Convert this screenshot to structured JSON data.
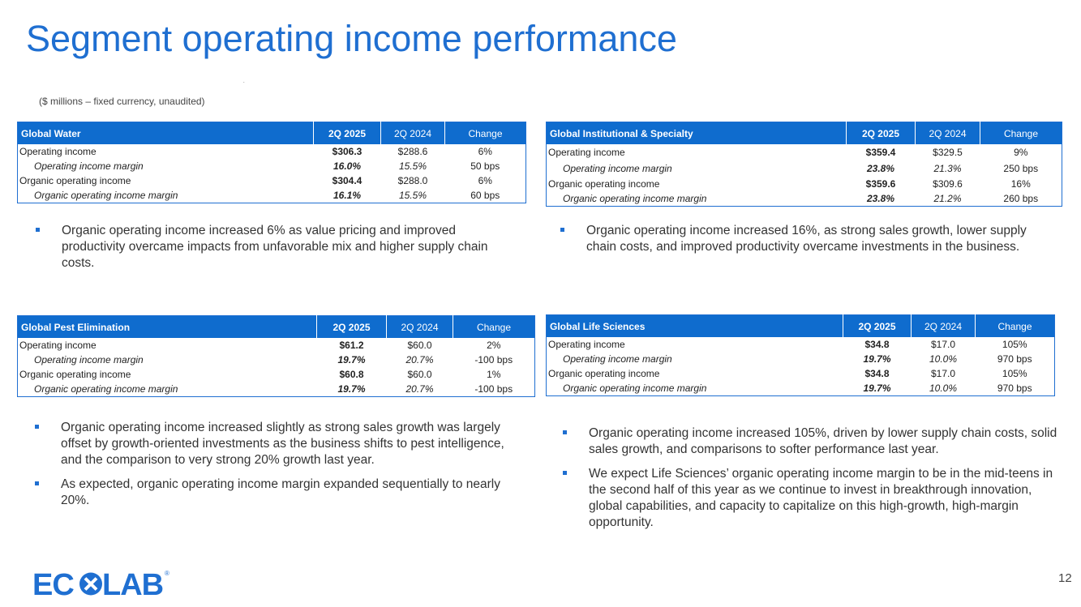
{
  "title": "Segment operating income performance",
  "subtitle": "($ millions – fixed currency, unaudited)",
  "page_number": "12",
  "colors": {
    "accent": "#1f6fd1",
    "header_bg": "#0f6cce"
  },
  "logo": {
    "text": "ECOLAB",
    "mark": "®"
  },
  "tables": {
    "water": {
      "name": "Global Water",
      "col_current": "2Q 2025",
      "col_prior": "2Q 2024",
      "col_change": "Change",
      "rows": [
        {
          "label": "Operating income",
          "current": "$306.3",
          "prior": "$288.6",
          "change": "6%"
        },
        {
          "label": "Operating income margin",
          "current": "16.0%",
          "prior": "15.5%",
          "change": "50 bps"
        },
        {
          "label": "Organic operating income",
          "current": "$304.4",
          "prior": "$288.0",
          "change": "6%"
        },
        {
          "label": "Organic operating income margin",
          "current": "16.1%",
          "prior": "15.5%",
          "change": "60 bps"
        }
      ]
    },
    "institutional": {
      "name": "Global Institutional & Specialty",
      "col_current": "2Q 2025",
      "col_prior": "2Q 2024",
      "col_change": "Change",
      "rows": [
        {
          "label": "Operating income",
          "current": "$359.4",
          "prior": "$329.5",
          "change": "9%"
        },
        {
          "label": "Operating income margin",
          "current": "23.8%",
          "prior": "21.3%",
          "change": "250 bps"
        },
        {
          "label": "Organic operating income",
          "current": "$359.6",
          "prior": "$309.6",
          "change": "16%"
        },
        {
          "label": "Organic operating income margin",
          "current": "23.8%",
          "prior": "21.2%",
          "change": "260 bps"
        }
      ]
    },
    "pest": {
      "name": "Global Pest Elimination",
      "col_current": "2Q 2025",
      "col_prior": "2Q 2024",
      "col_change": "Change",
      "rows": [
        {
          "label": "Operating income",
          "current": "$61.2",
          "prior": "$60.0",
          "change": "2%"
        },
        {
          "label": "Operating income margin",
          "current": "19.7%",
          "prior": "20.7%",
          "change": "-100 bps"
        },
        {
          "label": "Organic operating income",
          "current": "$60.8",
          "prior": "$60.0",
          "change": "1%"
        },
        {
          "label": "Organic operating income margin",
          "current": "19.7%",
          "prior": "20.7%",
          "change": "-100 bps"
        }
      ]
    },
    "life": {
      "name": "Global Life Sciences",
      "col_current": "2Q 2025",
      "col_prior": "2Q 2024",
      "col_change": "Change",
      "rows": [
        {
          "label": "Operating income",
          "current": "$34.8",
          "prior": "$17.0",
          "change": "105%"
        },
        {
          "label": "Operating income margin",
          "current": "19.7%",
          "prior": "10.0%",
          "change": "970 bps"
        },
        {
          "label": "Organic operating income",
          "current": "$34.8",
          "prior": "$17.0",
          "change": "105%"
        },
        {
          "label": "Organic operating income margin",
          "current": "19.7%",
          "prior": "10.0%",
          "change": "970 bps"
        }
      ]
    }
  },
  "bullets": {
    "water": [
      "Organic operating income increased 6% as value pricing and improved productivity overcame impacts from unfavorable mix and higher supply chain costs."
    ],
    "institutional": [
      "Organic operating income increased 16%, as strong sales growth, lower supply chain costs, and improved productivity overcame investments in the business."
    ],
    "pest": [
      "Organic operating income increased slightly as strong sales growth was largely offset by growth-oriented investments as the business shifts to pest intelligence, and the comparison to very strong 20% growth last year.",
      "As expected, organic operating income margin expanded sequentially to nearly 20%."
    ],
    "life": [
      "Organic operating income increased 105%, driven by lower supply chain costs, solid sales growth, and comparisons to softer performance last year.",
      "We expect Life Sciences’ organic operating income margin to be in the mid-teens in the second half of this year as we continue to invest in breakthrough innovation, global capabilities, and capacity to capitalize on this high-growth, high-margin opportunity."
    ]
  }
}
